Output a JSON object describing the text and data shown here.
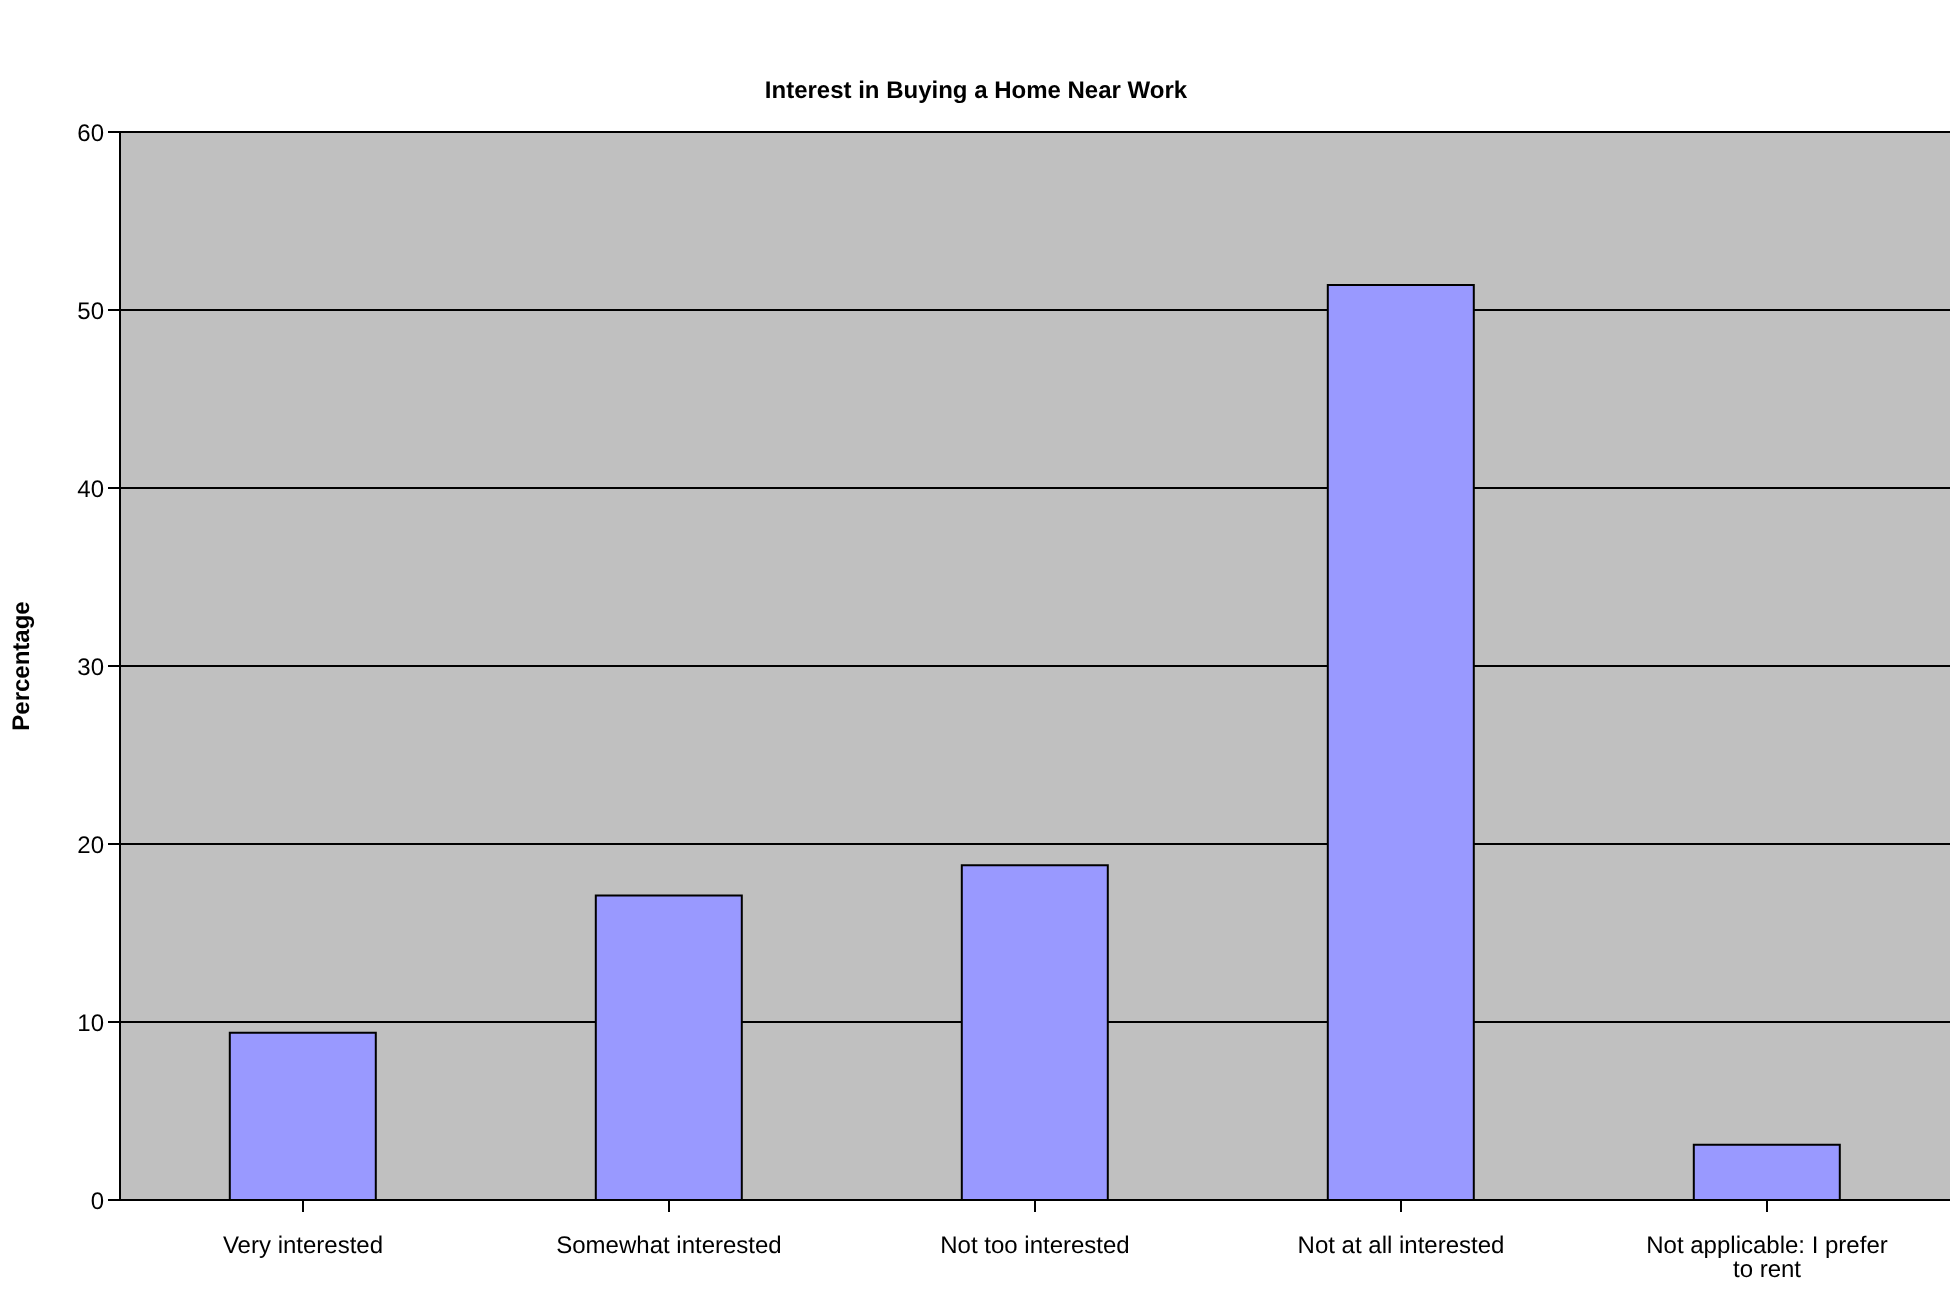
{
  "chart_data": {
    "type": "bar",
    "title": "Interest in Buying a Home Near Work",
    "ylabel": "Percentage",
    "categories": [
      "Very interested",
      "Somewhat interested",
      "Not too interested",
      "Not at all interested",
      "Not applicable: I prefer to rent"
    ],
    "values": [
      9.4,
      17.1,
      18.8,
      51.4,
      3.1
    ],
    "color": "#9999ff",
    "ylim": [
      0,
      60
    ],
    "yticks": [
      0,
      10,
      20,
      30,
      40,
      50,
      60
    ],
    "grid": "y",
    "legend": false
  }
}
